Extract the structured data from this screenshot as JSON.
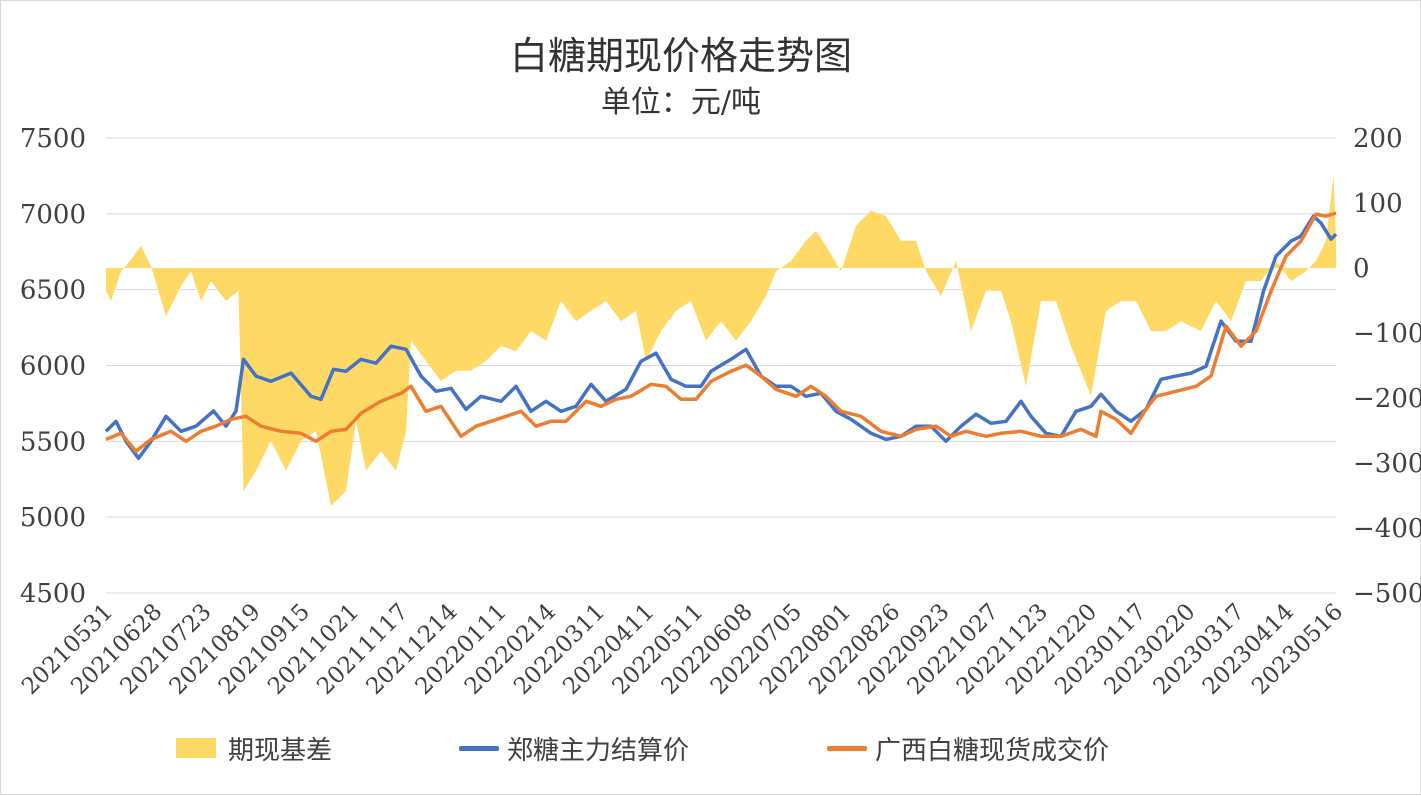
{
  "chart_data": {
    "type": "line",
    "title": "白糖期现价格走势图",
    "subtitle": "单位：元/吨",
    "x_index_max": 492,
    "x_tick_labels": [
      "20210531",
      "20210628",
      "20210723",
      "20210819",
      "20210915",
      "20211021",
      "20211117",
      "20211214",
      "20220111",
      "20220214",
      "20220311",
      "20220411",
      "20220511",
      "20220608",
      "20220705",
      "20220801",
      "20220826",
      "20220923",
      "20221027",
      "20221123",
      "20221220",
      "20230117",
      "20230220",
      "20230317",
      "20230414",
      "20230516"
    ],
    "y_left": {
      "min": 4500,
      "max": 7500,
      "ticks": [
        "4500",
        "5000",
        "5500",
        "6000",
        "6500",
        "7000",
        "7500"
      ]
    },
    "y_right": {
      "min": -500,
      "max": 200,
      "ticks": [
        "-500",
        "-400",
        "-300",
        "-200",
        "-100",
        "0",
        "100",
        "200"
      ]
    },
    "grid": true,
    "legend_position": "bottom",
    "series": [
      {
        "name": "期现基差",
        "type": "area",
        "axis": "right",
        "color": "#FFD966",
        "points": [
          [
            0,
            -35
          ],
          [
            2,
            -51
          ],
          [
            6,
            -5
          ],
          [
            9,
            8
          ],
          [
            14,
            34
          ],
          [
            18,
            3
          ],
          [
            24,
            -74
          ],
          [
            30,
            -28
          ],
          [
            34,
            -5
          ],
          [
            38,
            -51
          ],
          [
            42,
            -20
          ],
          [
            48,
            -51
          ],
          [
            53,
            -35
          ],
          [
            55,
            -343
          ],
          [
            60,
            -312
          ],
          [
            66,
            -266
          ],
          [
            72,
            -312
          ],
          [
            78,
            -266
          ],
          [
            84,
            -251
          ],
          [
            90,
            -366
          ],
          [
            96,
            -343
          ],
          [
            100,
            -235
          ],
          [
            104,
            -312
          ],
          [
            110,
            -282
          ],
          [
            116,
            -312
          ],
          [
            120,
            -251
          ],
          [
            122,
            -112
          ],
          [
            128,
            -143
          ],
          [
            134,
            -174
          ],
          [
            140,
            -158
          ],
          [
            146,
            -158
          ],
          [
            152,
            -143
          ],
          [
            158,
            -120
          ],
          [
            164,
            -128
          ],
          [
            170,
            -97
          ],
          [
            176,
            -112
          ],
          [
            182,
            -51
          ],
          [
            188,
            -82
          ],
          [
            194,
            -66
          ],
          [
            200,
            -51
          ],
          [
            206,
            -82
          ],
          [
            212,
            -66
          ],
          [
            216,
            -143
          ],
          [
            222,
            -97
          ],
          [
            228,
            -66
          ],
          [
            234,
            -51
          ],
          [
            240,
            -112
          ],
          [
            246,
            -82
          ],
          [
            252,
            -112
          ],
          [
            258,
            -82
          ],
          [
            264,
            -43
          ],
          [
            268,
            -5
          ],
          [
            274,
            11
          ],
          [
            280,
            42
          ],
          [
            284,
            57
          ],
          [
            288,
            34
          ],
          [
            294,
            -5
          ],
          [
            300,
            65
          ],
          [
            306,
            88
          ],
          [
            312,
            80
          ],
          [
            318,
            42
          ],
          [
            324,
            42
          ],
          [
            328,
            -5
          ],
          [
            334,
            -43
          ],
          [
            340,
            11
          ],
          [
            346,
            -97
          ],
          [
            352,
            -35
          ],
          [
            358,
            -35
          ],
          [
            362,
            -82
          ],
          [
            368,
            -182
          ],
          [
            374,
            -51
          ],
          [
            380,
            -51
          ],
          [
            386,
            -120
          ],
          [
            394,
            -197
          ],
          [
            400,
            -66
          ],
          [
            406,
            -51
          ],
          [
            412,
            -51
          ],
          [
            418,
            -97
          ],
          [
            424,
            -97
          ],
          [
            430,
            -82
          ],
          [
            438,
            -97
          ],
          [
            444,
            -51
          ],
          [
            450,
            -82
          ],
          [
            456,
            -20
          ],
          [
            462,
            -20
          ],
          [
            468,
            11
          ],
          [
            474,
            -20
          ],
          [
            480,
            -5
          ],
          [
            484,
            11
          ],
          [
            488,
            42
          ],
          [
            491,
            142
          ],
          [
            492,
            42
          ]
        ]
      },
      {
        "name": "郑糖主力结算价",
        "type": "line",
        "axis": "left",
        "color": "#4472C4",
        "points": [
          [
            0,
            5566
          ],
          [
            4,
            5632
          ],
          [
            8,
            5500
          ],
          [
            13,
            5388
          ],
          [
            18,
            5500
          ],
          [
            24,
            5665
          ],
          [
            30,
            5566
          ],
          [
            36,
            5600
          ],
          [
            43,
            5700
          ],
          [
            48,
            5600
          ],
          [
            52,
            5700
          ],
          [
            55,
            6041
          ],
          [
            60,
            5930
          ],
          [
            66,
            5896
          ],
          [
            74,
            5950
          ],
          [
            82,
            5797
          ],
          [
            86,
            5777
          ],
          [
            91,
            5975
          ],
          [
            96,
            5962
          ],
          [
            102,
            6041
          ],
          [
            108,
            6015
          ],
          [
            114,
            6127
          ],
          [
            120,
            6107
          ],
          [
            126,
            5930
          ],
          [
            132,
            5830
          ],
          [
            138,
            5850
          ],
          [
            144,
            5711
          ],
          [
            150,
            5797
          ],
          [
            158,
            5764
          ],
          [
            164,
            5863
          ],
          [
            170,
            5698
          ],
          [
            176,
            5764
          ],
          [
            182,
            5698
          ],
          [
            188,
            5731
          ],
          [
            194,
            5876
          ],
          [
            200,
            5764
          ],
          [
            208,
            5843
          ],
          [
            214,
            6028
          ],
          [
            220,
            6081
          ],
          [
            226,
            5909
          ],
          [
            232,
            5863
          ],
          [
            238,
            5863
          ],
          [
            242,
            5962
          ],
          [
            250,
            6041
          ],
          [
            256,
            6107
          ],
          [
            262,
            5930
          ],
          [
            268,
            5863
          ],
          [
            274,
            5863
          ],
          [
            280,
            5797
          ],
          [
            286,
            5817
          ],
          [
            292,
            5698
          ],
          [
            298,
            5645
          ],
          [
            306,
            5553
          ],
          [
            312,
            5513
          ],
          [
            318,
            5533
          ],
          [
            324,
            5600
          ],
          [
            330,
            5600
          ],
          [
            336,
            5500
          ],
          [
            342,
            5600
          ],
          [
            348,
            5679
          ],
          [
            354,
            5619
          ],
          [
            360,
            5632
          ],
          [
            366,
            5764
          ],
          [
            370,
            5665
          ],
          [
            376,
            5553
          ],
          [
            382,
            5533
          ],
          [
            388,
            5698
          ],
          [
            394,
            5731
          ],
          [
            398,
            5810
          ],
          [
            404,
            5698
          ],
          [
            410,
            5632
          ],
          [
            416,
            5711
          ],
          [
            422,
            5909
          ],
          [
            428,
            5930
          ],
          [
            434,
            5950
          ],
          [
            440,
            5995
          ],
          [
            446,
            6292
          ],
          [
            452,
            6160
          ],
          [
            458,
            6160
          ],
          [
            463,
            6490
          ],
          [
            468,
            6721
          ],
          [
            474,
            6820
          ],
          [
            478,
            6853
          ],
          [
            483,
            6985
          ],
          [
            486,
            6939
          ],
          [
            490,
            6833
          ],
          [
            492,
            6866
          ]
        ]
      },
      {
        "name": "广西白糖现货成交价",
        "type": "line",
        "axis": "left",
        "color": "#ED7D31",
        "points": [
          [
            0,
            5513
          ],
          [
            6,
            5553
          ],
          [
            12,
            5434
          ],
          [
            18,
            5513
          ],
          [
            26,
            5566
          ],
          [
            32,
            5500
          ],
          [
            38,
            5566
          ],
          [
            44,
            5600
          ],
          [
            50,
            5645
          ],
          [
            56,
            5665
          ],
          [
            62,
            5600
          ],
          [
            70,
            5566
          ],
          [
            78,
            5553
          ],
          [
            84,
            5500
          ],
          [
            90,
            5566
          ],
          [
            96,
            5579
          ],
          [
            102,
            5685
          ],
          [
            110,
            5764
          ],
          [
            118,
            5817
          ],
          [
            122,
            5863
          ],
          [
            128,
            5698
          ],
          [
            134,
            5731
          ],
          [
            142,
            5533
          ],
          [
            148,
            5600
          ],
          [
            154,
            5632
          ],
          [
            160,
            5665
          ],
          [
            166,
            5698
          ],
          [
            172,
            5600
          ],
          [
            178,
            5632
          ],
          [
            184,
            5632
          ],
          [
            192,
            5764
          ],
          [
            198,
            5731
          ],
          [
            204,
            5777
          ],
          [
            210,
            5797
          ],
          [
            218,
            5876
          ],
          [
            224,
            5863
          ],
          [
            230,
            5777
          ],
          [
            236,
            5777
          ],
          [
            242,
            5896
          ],
          [
            250,
            5962
          ],
          [
            256,
            6002
          ],
          [
            262,
            5930
          ],
          [
            268,
            5843
          ],
          [
            276,
            5797
          ],
          [
            282,
            5863
          ],
          [
            288,
            5797
          ],
          [
            294,
            5698
          ],
          [
            302,
            5665
          ],
          [
            310,
            5566
          ],
          [
            318,
            5533
          ],
          [
            324,
            5579
          ],
          [
            332,
            5600
          ],
          [
            338,
            5533
          ],
          [
            344,
            5566
          ],
          [
            352,
            5533
          ],
          [
            358,
            5553
          ],
          [
            366,
            5566
          ],
          [
            374,
            5533
          ],
          [
            382,
            5533
          ],
          [
            390,
            5579
          ],
          [
            396,
            5533
          ],
          [
            398,
            5698
          ],
          [
            404,
            5645
          ],
          [
            410,
            5553
          ],
          [
            416,
            5711
          ],
          [
            420,
            5797
          ],
          [
            428,
            5830
          ],
          [
            436,
            5863
          ],
          [
            442,
            5930
          ],
          [
            448,
            6260
          ],
          [
            454,
            6127
          ],
          [
            460,
            6226
          ],
          [
            466,
            6490
          ],
          [
            472,
            6721
          ],
          [
            478,
            6820
          ],
          [
            484,
            6998
          ],
          [
            488,
            6985
          ],
          [
            492,
            7005
          ]
        ]
      }
    ]
  }
}
